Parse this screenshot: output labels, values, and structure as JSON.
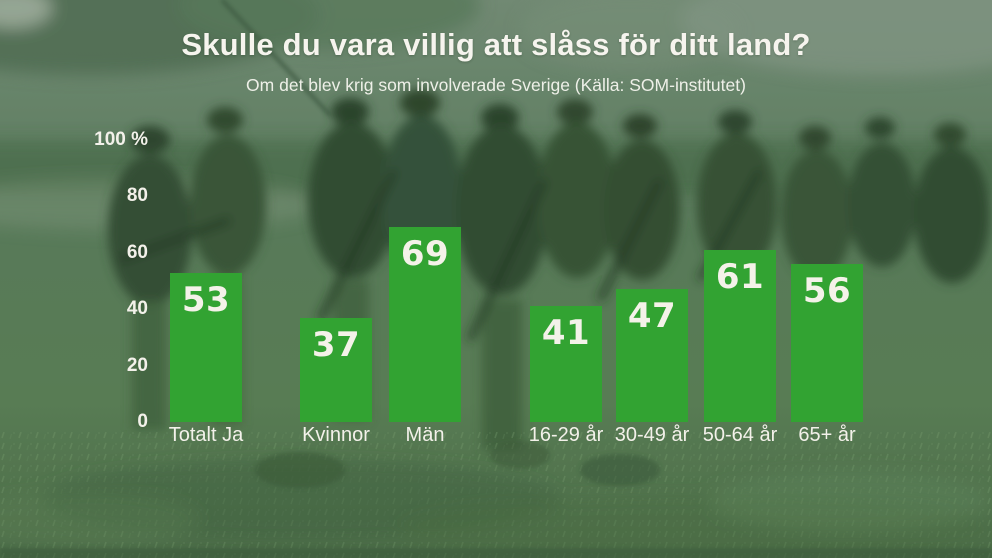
{
  "chart_data": {
    "type": "bar",
    "title": "Skulle du vara villig att slåss för ditt land?",
    "subtitle": "Om det blev krig som involverade Sverige (Källa: SOM-institutet)",
    "source": "SOM-institutet",
    "categories": [
      "Totalt Ja",
      "Kvinnor",
      "Män",
      "16-29 år",
      "30-49 år",
      "50-64 år",
      "65+ år"
    ],
    "values": [
      53,
      37,
      69,
      41,
      47,
      61,
      56
    ],
    "unit": "%",
    "xlabel": "",
    "ylabel": "%",
    "ylim": [
      0,
      100
    ],
    "yticks": [
      {
        "label": "100 %",
        "value": 100
      },
      {
        "label": "80",
        "value": 80
      },
      {
        "label": "60",
        "value": 60
      },
      {
        "label": "40",
        "value": 40
      },
      {
        "label": "20",
        "value": 20
      },
      {
        "label": "0",
        "value": 0
      }
    ],
    "grid": false,
    "legend": "none",
    "bar_color": "#32a332",
    "value_label_color": "#f4f2e9",
    "axis_text_color": "#f3f1ea"
  },
  "colors": {
    "accent_green": "#32a332",
    "background_tint": "#5e7d5e",
    "title_text": "#f6f4ee"
  }
}
